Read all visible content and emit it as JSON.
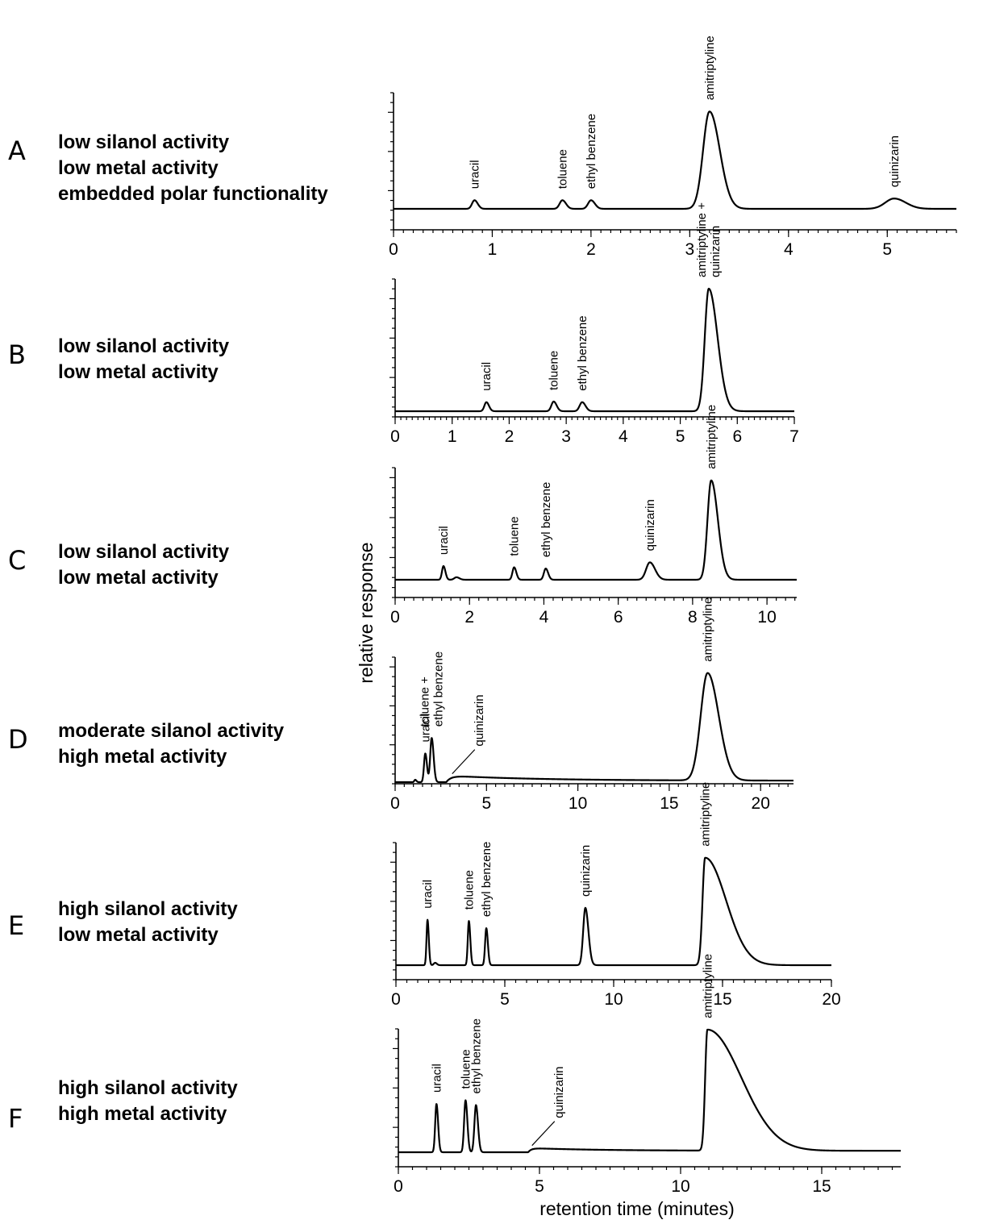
{
  "y_axis_title": "relative response",
  "x_axis_title": "retention time (minutes)",
  "chart_data": [
    {
      "id": "A",
      "type": "line",
      "letter": "A",
      "description": [
        "low silanol activity",
        "low metal activity",
        "embedded polar functionality"
      ],
      "xlim": [
        0,
        5.7
      ],
      "xticks": [
        0,
        1,
        2,
        3,
        4,
        5
      ],
      "minor_step": 0.1,
      "peaks": [
        {
          "t": 0.82,
          "h": 0.075,
          "w": 0.025,
          "tail": 1.3,
          "label": [
            "uracil"
          ]
        },
        {
          "t": 1.71,
          "h": 0.075,
          "w": 0.028,
          "tail": 1.3,
          "label": [
            "toluene"
          ]
        },
        {
          "t": 2.0,
          "h": 0.075,
          "w": 0.03,
          "tail": 1.3,
          "label": [
            "ethyl benzene"
          ]
        },
        {
          "t": 3.2,
          "h": 0.85,
          "w": 0.065,
          "tail": 1.6,
          "label": [
            "amitriptyline"
          ]
        },
        {
          "t": 5.07,
          "h": 0.09,
          "w": 0.09,
          "tail": 1.3,
          "label": [
            "quinizarin"
          ]
        }
      ]
    },
    {
      "id": "B",
      "type": "line",
      "letter": "B",
      "description": [
        "low silanol activity",
        "low metal activity"
      ],
      "xlim": [
        0,
        7
      ],
      "xticks": [
        0,
        1,
        2,
        3,
        4,
        5,
        6,
        7
      ],
      "minor_step": 0.1,
      "peaks": [
        {
          "t": 1.6,
          "h": 0.07,
          "w": 0.035,
          "tail": 1.3,
          "label": [
            "uracil"
          ]
        },
        {
          "t": 2.78,
          "h": 0.075,
          "w": 0.04,
          "tail": 1.3,
          "label": [
            "toluene"
          ]
        },
        {
          "t": 3.28,
          "h": 0.07,
          "w": 0.045,
          "tail": 1.3,
          "label": [
            "ethyl benzene"
          ]
        },
        {
          "t": 5.5,
          "h": 0.95,
          "w": 0.07,
          "tail": 2.2,
          "label": [
            "amitriptyline +",
            "quinizarin"
          ]
        }
      ]
    },
    {
      "id": "C",
      "type": "line",
      "letter": "C",
      "description": [
        "low silanol activity",
        "low metal activity"
      ],
      "xlim": [
        0,
        10.8
      ],
      "xticks": [
        0,
        2,
        4,
        6,
        8,
        10
      ],
      "minor_step": 0.25,
      "peaks": [
        {
          "t": 1.3,
          "h": 0.11,
          "w": 0.04,
          "tail": 1.3,
          "label": [
            "uracil"
          ]
        },
        {
          "t": 1.65,
          "h": 0.02,
          "w": 0.06,
          "tail": 1.3,
          "label": []
        },
        {
          "t": 3.2,
          "h": 0.1,
          "w": 0.045,
          "tail": 1.3,
          "label": [
            "toluene"
          ]
        },
        {
          "t": 4.05,
          "h": 0.09,
          "w": 0.05,
          "tail": 1.3,
          "label": [
            "ethyl benzene"
          ]
        },
        {
          "t": 6.85,
          "h": 0.14,
          "w": 0.1,
          "tail": 1.4,
          "label": [
            "quinizarin"
          ]
        },
        {
          "t": 8.5,
          "h": 0.8,
          "w": 0.1,
          "tail": 1.8,
          "label": [
            "amitriptyline"
          ]
        }
      ]
    },
    {
      "id": "D",
      "type": "line",
      "letter": "D",
      "description": [
        "moderate silanol activity",
        "high metal activity"
      ],
      "xlim": [
        0,
        21.8
      ],
      "xticks": [
        0,
        5,
        10,
        15,
        20
      ],
      "minor_step": 0.5,
      "drift": {
        "start": 2.8,
        "rise": 0.8,
        "height": 0.055,
        "decay": 5,
        "floor": 0.012
      },
      "peaks": [
        {
          "t": 1.1,
          "h": 0.02,
          "w": 0.05,
          "tail": 1.3,
          "label": []
        },
        {
          "t": 1.65,
          "h": 0.24,
          "w": 0.07,
          "tail": 1.3,
          "label": [
            "uracil"
          ]
        },
        {
          "t": 2.0,
          "h": 0.37,
          "w": 0.08,
          "tail": 1.3,
          "label": [
            "toluene +",
            "ethyl benzene"
          ]
        },
        {
          "t": 17.1,
          "h": 0.9,
          "w": 0.38,
          "tail": 1.6,
          "label": [
            "amitriptyline"
          ]
        }
      ],
      "callouts": [
        {
          "t": 3.3,
          "label": [
            "quinizarin"
          ]
        }
      ]
    },
    {
      "id": "E",
      "type": "line",
      "letter": "E",
      "description": [
        "high silanol activity",
        "low metal activity"
      ],
      "xlim": [
        0,
        20
      ],
      "xticks": [
        0,
        5,
        10,
        15,
        20
      ],
      "minor_step": 0.5,
      "peaks": [
        {
          "t": 1.45,
          "h": 0.38,
          "w": 0.045,
          "tail": 1.3,
          "label": [
            "uracil"
          ]
        },
        {
          "t": 1.8,
          "h": 0.02,
          "w": 0.06,
          "tail": 1.3,
          "label": []
        },
        {
          "t": 3.35,
          "h": 0.37,
          "w": 0.05,
          "tail": 1.3,
          "label": [
            "toluene"
          ]
        },
        {
          "t": 4.15,
          "h": 0.31,
          "w": 0.055,
          "tail": 1.3,
          "label": [
            "ethyl benzene"
          ]
        },
        {
          "t": 8.7,
          "h": 0.48,
          "w": 0.1,
          "tail": 1.4,
          "label": [
            "quinizarin"
          ]
        },
        {
          "t": 14.2,
          "h": 0.9,
          "w": 0.12,
          "tail": 8,
          "label": [
            "amitriptyline"
          ]
        }
      ]
    },
    {
      "id": "F",
      "type": "line",
      "letter": "F",
      "description": [
        "high silanol activity",
        "high metal activity"
      ],
      "xlim": [
        0,
        17.8
      ],
      "xticks": [
        0,
        5,
        10,
        15
      ],
      "minor_step": 0.5,
      "drift": {
        "start": 4.6,
        "rise": 0.35,
        "height": 0.035,
        "decay": 2.5,
        "floor": 0.012
      },
      "peaks": [
        {
          "t": 1.35,
          "h": 0.4,
          "w": 0.045,
          "tail": 1.3,
          "label": [
            "uracil"
          ]
        },
        {
          "t": 2.38,
          "h": 0.43,
          "w": 0.05,
          "tail": 1.3,
          "label": [
            "toluene"
          ]
        },
        {
          "t": 2.75,
          "h": 0.39,
          "w": 0.055,
          "tail": 1.3,
          "label": [
            "ethyl benzene"
          ]
        },
        {
          "t": 10.95,
          "h": 1.0,
          "w": 0.08,
          "tail": 15,
          "label": [
            "amitriptyline"
          ]
        }
      ],
      "callouts": [
        {
          "t": 4.85,
          "label": [
            "quinizarin"
          ]
        }
      ]
    }
  ]
}
